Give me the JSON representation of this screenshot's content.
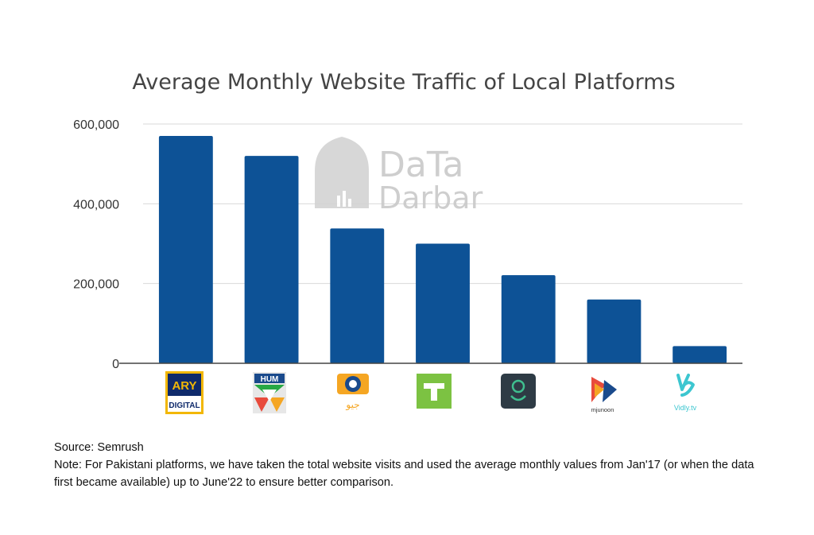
{
  "chart_data": {
    "type": "bar",
    "title": "Average Monthly Website Traffic of Local Platforms",
    "categories": [
      "ARY Digital",
      "HUM",
      "Geo",
      "Tamasha",
      "Eros",
      "Mjunoon",
      "Vidly.tv"
    ],
    "values": [
      570000,
      520000,
      338000,
      300000,
      221000,
      160000,
      43000
    ],
    "ylim": [
      0,
      600000
    ],
    "yticks": [
      "0",
      "200,000",
      "400,000",
      "600,000"
    ],
    "grid": true,
    "legend": "none",
    "bar_color": "#0d5296"
  },
  "logos": {
    "ary": {
      "top": "ARY",
      "bottom": "DIGITAL"
    },
    "hum": {
      "text": "HUM"
    },
    "geo": {
      "text": "جیو"
    },
    "mjunoon": {
      "text": "mjunoon"
    },
    "vidly": {
      "text": "Vidly.tv"
    }
  },
  "watermark": {
    "line1": "DaTa",
    "line2": "Darbar"
  },
  "footer": {
    "source": "Source: Semrush",
    "note": "Note: For Pakistani platforms, we have taken the total website visits and used the average monthly values from Jan'17 (or when the data first became available) up to June'22 to ensure better comparison."
  }
}
